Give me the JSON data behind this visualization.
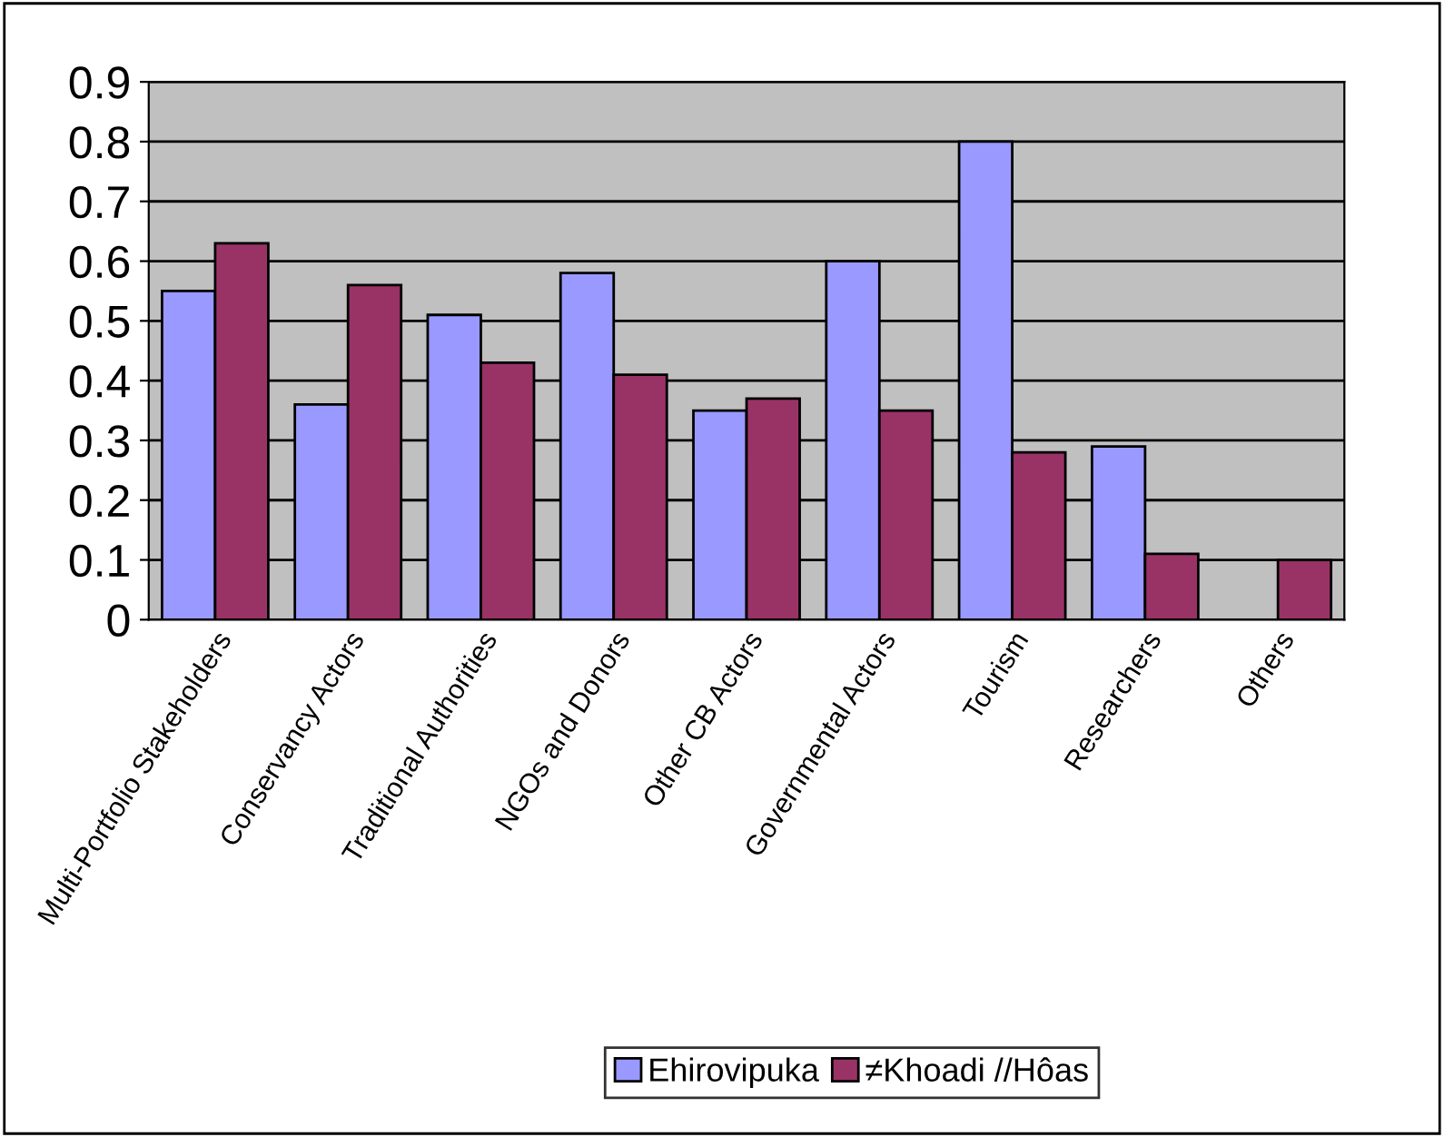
{
  "chart_data": {
    "type": "bar",
    "categories": [
      "Multi-Portfolio Stakeholders",
      "Conservancy Actors",
      "Traditional Authorities",
      "NGOs and Donors",
      "Other CB Actors",
      "Governmental Actors",
      "Tourism",
      "Researchers",
      "Others"
    ],
    "series": [
      {
        "name": "Ehirovipuka",
        "color": "#9999ff",
        "values": [
          0.55,
          0.36,
          0.51,
          0.58,
          0.35,
          0.6,
          0.8,
          0.29,
          null
        ]
      },
      {
        "name": "≠Khoadi //Hôas",
        "color": "#993366",
        "values": [
          0.63,
          0.56,
          0.43,
          0.41,
          0.37,
          0.35,
          0.28,
          0.11,
          0.1
        ]
      }
    ],
    "ylim": [
      0,
      0.9
    ],
    "yticks": [
      0,
      0.1,
      0.2,
      0.3,
      0.4,
      0.5,
      0.6,
      0.7,
      0.8,
      0.9
    ],
    "grid": "y",
    "legend": "bottom"
  }
}
